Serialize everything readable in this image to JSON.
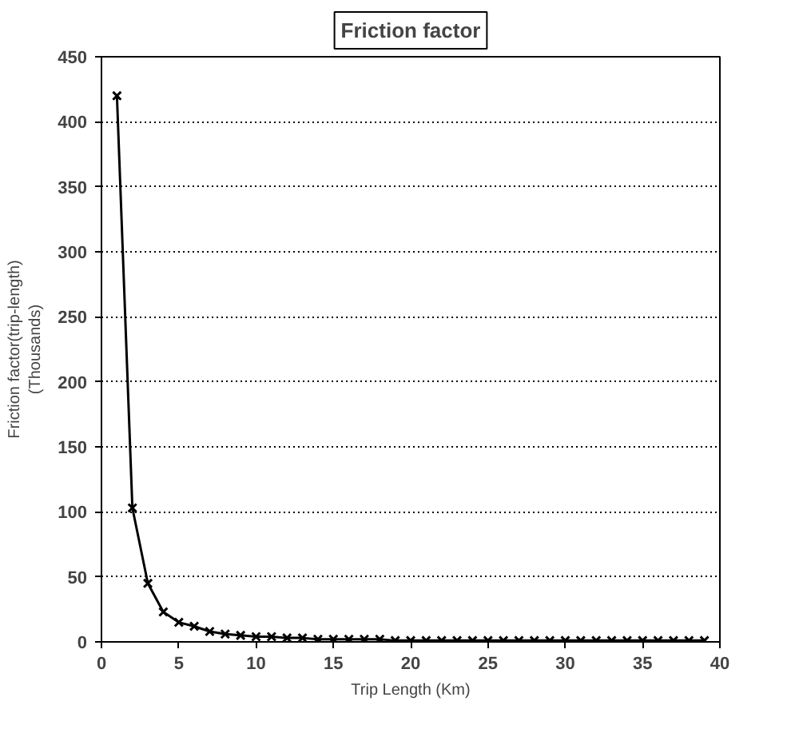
{
  "chart_data": {
    "type": "line",
    "title": "Friction factor",
    "xlabel": "Trip Length (Km)",
    "ylabel": "Friction factor(trip-length)\n(Thousands)",
    "x": [
      1,
      2,
      3,
      4,
      5,
      6,
      7,
      8,
      9,
      10,
      11,
      12,
      13,
      14,
      15,
      16,
      17,
      18,
      19,
      20,
      21,
      22,
      23,
      24,
      25,
      26,
      27,
      28,
      29,
      30,
      31,
      32,
      33,
      34,
      35,
      36,
      37,
      38,
      39
    ],
    "series": [
      {
        "color": "#000000",
        "values": [
          420,
          103,
          45,
          23,
          15,
          12,
          8,
          6,
          5,
          4,
          4,
          3,
          3,
          2,
          2,
          2,
          2,
          2,
          1,
          1,
          1,
          1,
          1,
          1,
          1,
          1,
          1,
          1,
          1,
          1,
          1,
          1,
          1,
          1,
          1,
          1,
          1,
          1,
          1
        ]
      }
    ],
    "xlim": [
      0,
      40
    ],
    "xticks": [
      0,
      5,
      10,
      15,
      20,
      25,
      30,
      35,
      40
    ],
    "ylim": [
      0,
      450
    ],
    "yticks": [
      0,
      50,
      100,
      150,
      200,
      250,
      300,
      350,
      400,
      450
    ],
    "grid": "y",
    "marker": "cross",
    "line_style": "solid"
  }
}
